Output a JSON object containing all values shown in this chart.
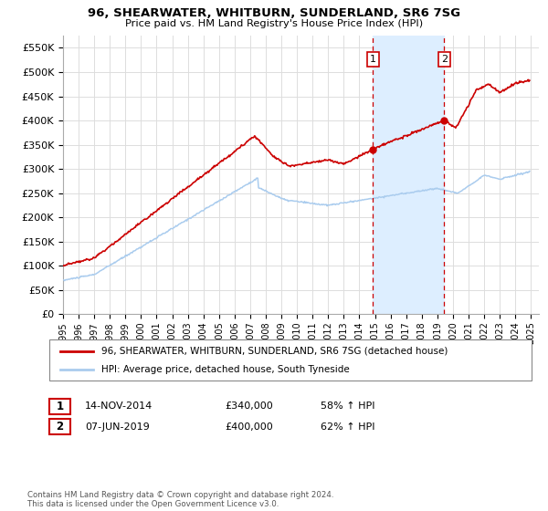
{
  "title": "96, SHEARWATER, WHITBURN, SUNDERLAND, SR6 7SG",
  "subtitle": "Price paid vs. HM Land Registry's House Price Index (HPI)",
  "legend_line1": "96, SHEARWATER, WHITBURN, SUNDERLAND, SR6 7SG (detached house)",
  "legend_line2": "HPI: Average price, detached house, South Tyneside",
  "annotation1_label": "1",
  "annotation1_date": "14-NOV-2014",
  "annotation1_price": "£340,000",
  "annotation1_hpi": "58% ↑ HPI",
  "annotation1_year": 2014.87,
  "annotation1_value": 340000,
  "annotation2_label": "2",
  "annotation2_date": "07-JUN-2019",
  "annotation2_price": "£400,000",
  "annotation2_hpi": "62% ↑ HPI",
  "annotation2_year": 2019.44,
  "annotation2_value": 400000,
  "sale_color": "#cc0000",
  "hpi_color": "#aaccee",
  "vline_color": "#cc0000",
  "highlight_color": "#ddeeff",
  "footer": "Contains HM Land Registry data © Crown copyright and database right 2024.\nThis data is licensed under the Open Government Licence v3.0.",
  "ylim": [
    0,
    575000
  ],
  "yticks": [
    0,
    50000,
    100000,
    150000,
    200000,
    250000,
    300000,
    350000,
    400000,
    450000,
    500000,
    550000
  ],
  "xlim_start": 1995,
  "xlim_end": 2025.5,
  "bg_color": "#f0f0f0"
}
